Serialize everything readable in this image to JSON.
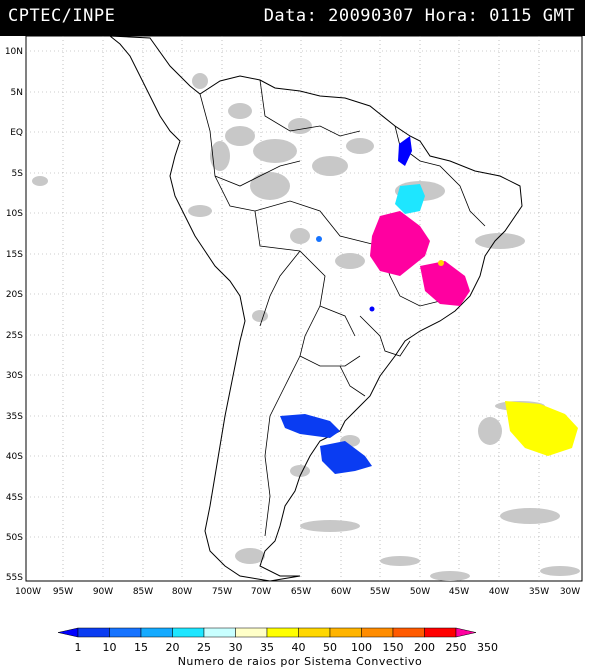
{
  "header": {
    "source": "CPTEC/INPE",
    "datetime": "Data: 20090307 Hora: 0115 GMT"
  },
  "map": {
    "lat_labels": [
      "10N",
      "5N",
      "EQ",
      "5S",
      "10S",
      "15S",
      "20S",
      "25S",
      "30S",
      "35S",
      "40S",
      "45S",
      "50S",
      "55S"
    ],
    "lon_labels": [
      "100W",
      "95W",
      "90W",
      "85W",
      "80W",
      "75W",
      "70W",
      "65W",
      "60W",
      "55W",
      "50W",
      "45W",
      "40W",
      "35W",
      "30W"
    ],
    "colors": {
      "coast": "#000000",
      "cloud": "#c8c8c8",
      "grid": "#9a9a9a"
    }
  },
  "colorbar": {
    "labels": [
      "1",
      "10",
      "15",
      "20",
      "25",
      "30",
      "35",
      "40",
      "50",
      "100",
      "150",
      "200",
      "250",
      "350"
    ],
    "colors": [
      "#0000ff",
      "#0a3cf2",
      "#1673ff",
      "#14aaff",
      "#1ee6ff",
      "#c8ffff",
      "#ffffc8",
      "#ffff00",
      "#ffd700",
      "#ffb400",
      "#ff8c00",
      "#ff5a00",
      "#ff0000",
      "#ff00a0"
    ],
    "title": "Numero de raios por Sistema Convectivo"
  }
}
